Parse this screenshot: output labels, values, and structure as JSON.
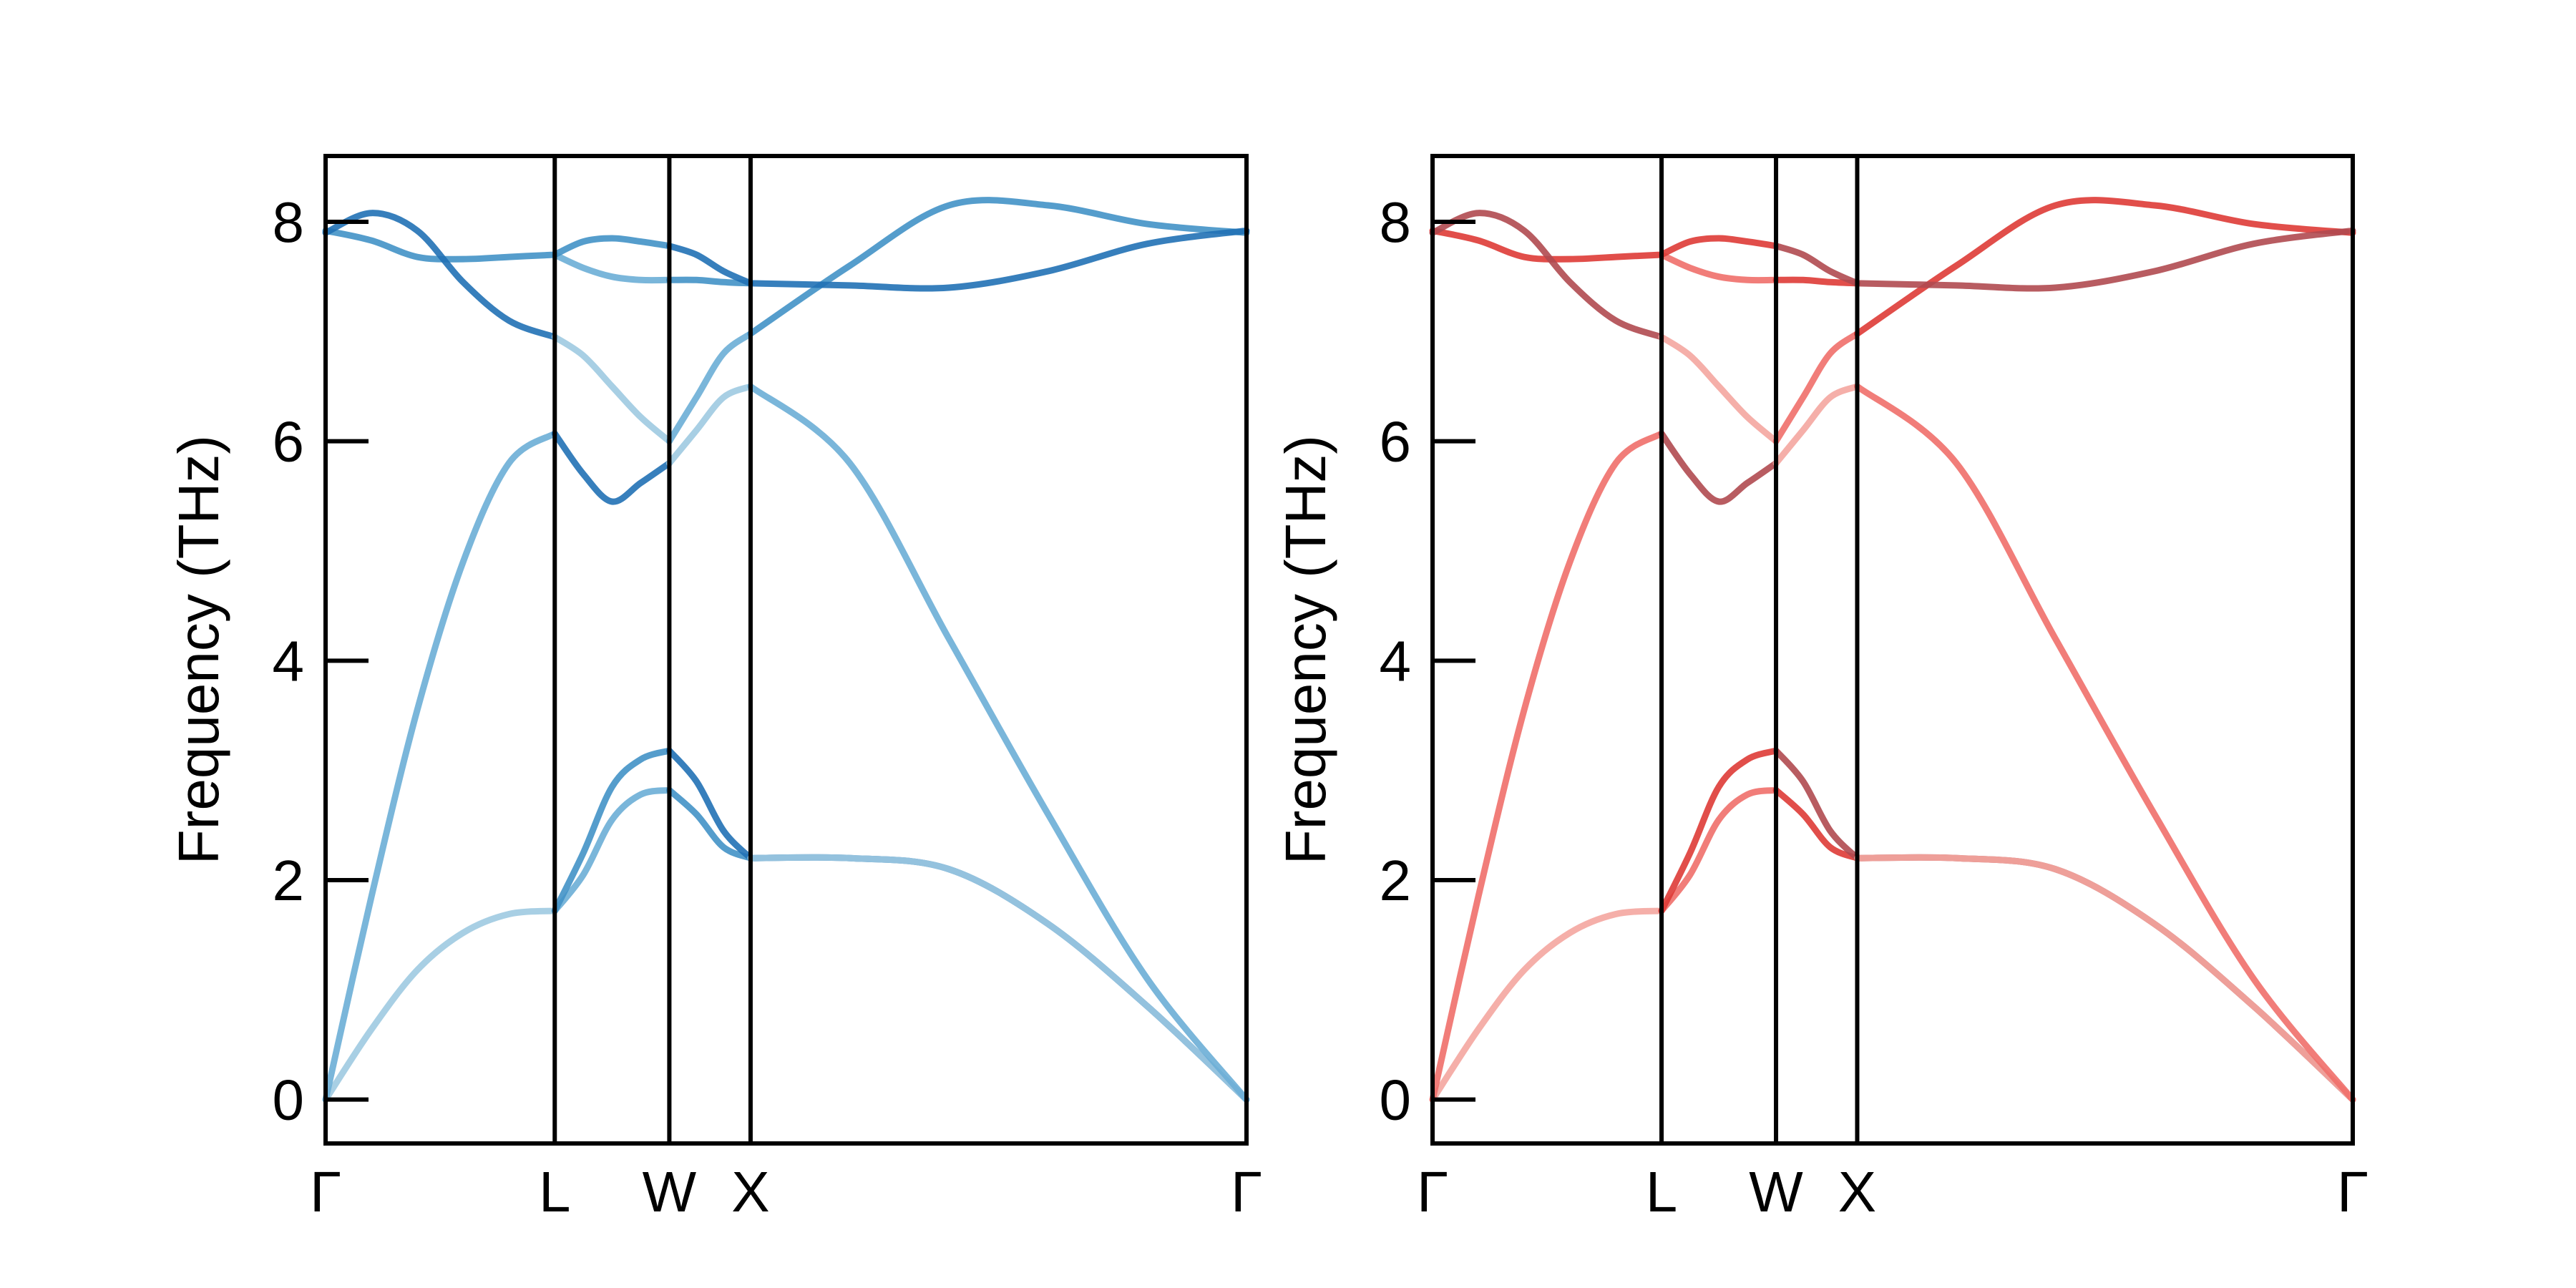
{
  "chart_data": [
    {
      "type": "line",
      "title": "",
      "xlabel": "",
      "ylabel": "Frequency (THz)",
      "ylim": [
        -0.4,
        8.6
      ],
      "yticks": [
        0,
        2,
        4,
        6,
        8
      ],
      "ytick_labels": [
        "0",
        "2",
        "4",
        "6",
        "8"
      ],
      "xticks": [
        "Γ",
        "L",
        "W",
        "X",
        "Γ"
      ],
      "xtick_positions": [
        0,
        0.866,
        1.299,
        1.606,
        3.48
      ],
      "grid": false,
      "legend": "none",
      "colors": [
        "#9ecae1",
        "#6baed6",
        "#4292c6",
        "#2171b5"
      ],
      "segments": [
        {
          "from": "Γ",
          "to": "L",
          "x": [
            0,
            0.866
          ],
          "bands": [
            [
              0.0,
              0.64,
              1.18,
              1.52,
              1.69,
              1.72
            ],
            [
              0.0,
              1.85,
              3.55,
              4.9,
              5.8,
              6.07
            ],
            [
              7.92,
              7.83,
              7.68,
              7.66,
              7.68,
              7.7
            ],
            [
              7.9,
              8.08,
              7.92,
              7.45,
              7.1,
              6.95
            ]
          ]
        },
        {
          "from": "L",
          "to": "W",
          "x": [
            0.866,
            1.299
          ],
          "bands": [
            [
              1.72,
              2.05,
              2.55,
              2.78,
              2.82
            ],
            [
              1.72,
              2.25,
              2.85,
              3.1,
              3.18
            ],
            [
              6.07,
              5.7,
              5.45,
              5.62,
              5.8
            ],
            [
              6.95,
              6.78,
              6.5,
              6.22,
              6.0
            ],
            [
              7.7,
              7.58,
              7.5,
              7.47,
              7.47
            ],
            [
              7.7,
              7.82,
              7.85,
              7.82,
              7.78
            ]
          ]
        },
        {
          "from": "W",
          "to": "X",
          "x": [
            1.299,
            1.606
          ],
          "bands": [
            [
              2.82,
              2.6,
              2.3,
              2.2
            ],
            [
              3.18,
              2.9,
              2.45,
              2.2
            ],
            [
              5.8,
              6.1,
              6.4,
              6.5
            ],
            [
              6.0,
              6.4,
              6.8,
              6.98
            ],
            [
              7.47,
              7.47,
              7.45,
              7.44
            ],
            [
              7.78,
              7.7,
              7.55,
              7.44
            ]
          ]
        },
        {
          "from": "X",
          "to": "Γ",
          "x": [
            1.606,
            3.48
          ],
          "bands": [
            [
              2.2,
              2.2,
              2.1,
              1.6,
              0.85,
              0.0
            ],
            [
              2.2,
              2.2,
              2.1,
              1.6,
              0.85,
              0.0
            ],
            [
              6.5,
              5.8,
              4.2,
              2.6,
              1.1,
              0.0
            ],
            [
              6.98,
              7.6,
              8.15,
              8.15,
              7.98,
              7.9
            ],
            [
              7.44,
              7.42,
              7.4,
              7.55,
              7.8,
              7.92
            ]
          ]
        }
      ]
    },
    {
      "type": "line",
      "title": "",
      "xlabel": "",
      "ylabel": "Frequency (THz)",
      "ylim": [
        -0.4,
        8.6
      ],
      "yticks": [
        0,
        2,
        4,
        6,
        8
      ],
      "ytick_labels": [
        "0",
        "2",
        "4",
        "6",
        "8"
      ],
      "xticks": [
        "Γ",
        "L",
        "W",
        "X",
        "Γ"
      ],
      "xtick_positions": [
        0,
        0.866,
        1.299,
        1.606,
        3.48
      ],
      "grid": false,
      "legend": "none",
      "colors": [
        "#f4a6a0",
        "#ef6f6a",
        "#de3b36",
        "#b04a50"
      ],
      "segments": [
        {
          "from": "Γ",
          "to": "L",
          "x": [
            0,
            0.866
          ],
          "bands": [
            [
              0.0,
              0.64,
              1.18,
              1.52,
              1.69,
              1.72
            ],
            [
              0.0,
              1.85,
              3.55,
              4.9,
              5.8,
              6.07
            ],
            [
              7.92,
              7.83,
              7.68,
              7.66,
              7.68,
              7.7
            ],
            [
              7.9,
              8.08,
              7.92,
              7.45,
              7.1,
              6.95
            ]
          ]
        },
        {
          "from": "L",
          "to": "W",
          "x": [
            0.866,
            1.299
          ],
          "bands": [
            [
              1.72,
              2.05,
              2.55,
              2.78,
              2.82
            ],
            [
              1.72,
              2.25,
              2.85,
              3.1,
              3.18
            ],
            [
              6.07,
              5.7,
              5.45,
              5.62,
              5.8
            ],
            [
              6.95,
              6.78,
              6.5,
              6.22,
              6.0
            ],
            [
              7.7,
              7.58,
              7.5,
              7.47,
              7.47
            ],
            [
              7.7,
              7.82,
              7.85,
              7.82,
              7.78
            ]
          ]
        },
        {
          "from": "W",
          "to": "X",
          "x": [
            1.299,
            1.606
          ],
          "bands": [
            [
              2.82,
              2.6,
              2.3,
              2.2
            ],
            [
              3.18,
              2.9,
              2.45,
              2.2
            ],
            [
              5.8,
              6.1,
              6.4,
              6.5
            ],
            [
              6.0,
              6.4,
              6.8,
              6.98
            ],
            [
              7.47,
              7.47,
              7.45,
              7.44
            ],
            [
              7.78,
              7.7,
              7.55,
              7.44
            ]
          ]
        },
        {
          "from": "X",
          "to": "Γ",
          "x": [
            1.606,
            3.48
          ],
          "bands": [
            [
              2.2,
              2.2,
              2.1,
              1.6,
              0.85,
              0.0
            ],
            [
              2.2,
              2.2,
              2.1,
              1.6,
              0.85,
              0.0
            ],
            [
              6.5,
              5.8,
              4.2,
              2.6,
              1.1,
              0.0
            ],
            [
              6.98,
              7.6,
              8.15,
              8.15,
              7.98,
              7.9
            ],
            [
              7.44,
              7.42,
              7.4,
              7.55,
              7.8,
              7.92
            ]
          ]
        }
      ]
    }
  ]
}
